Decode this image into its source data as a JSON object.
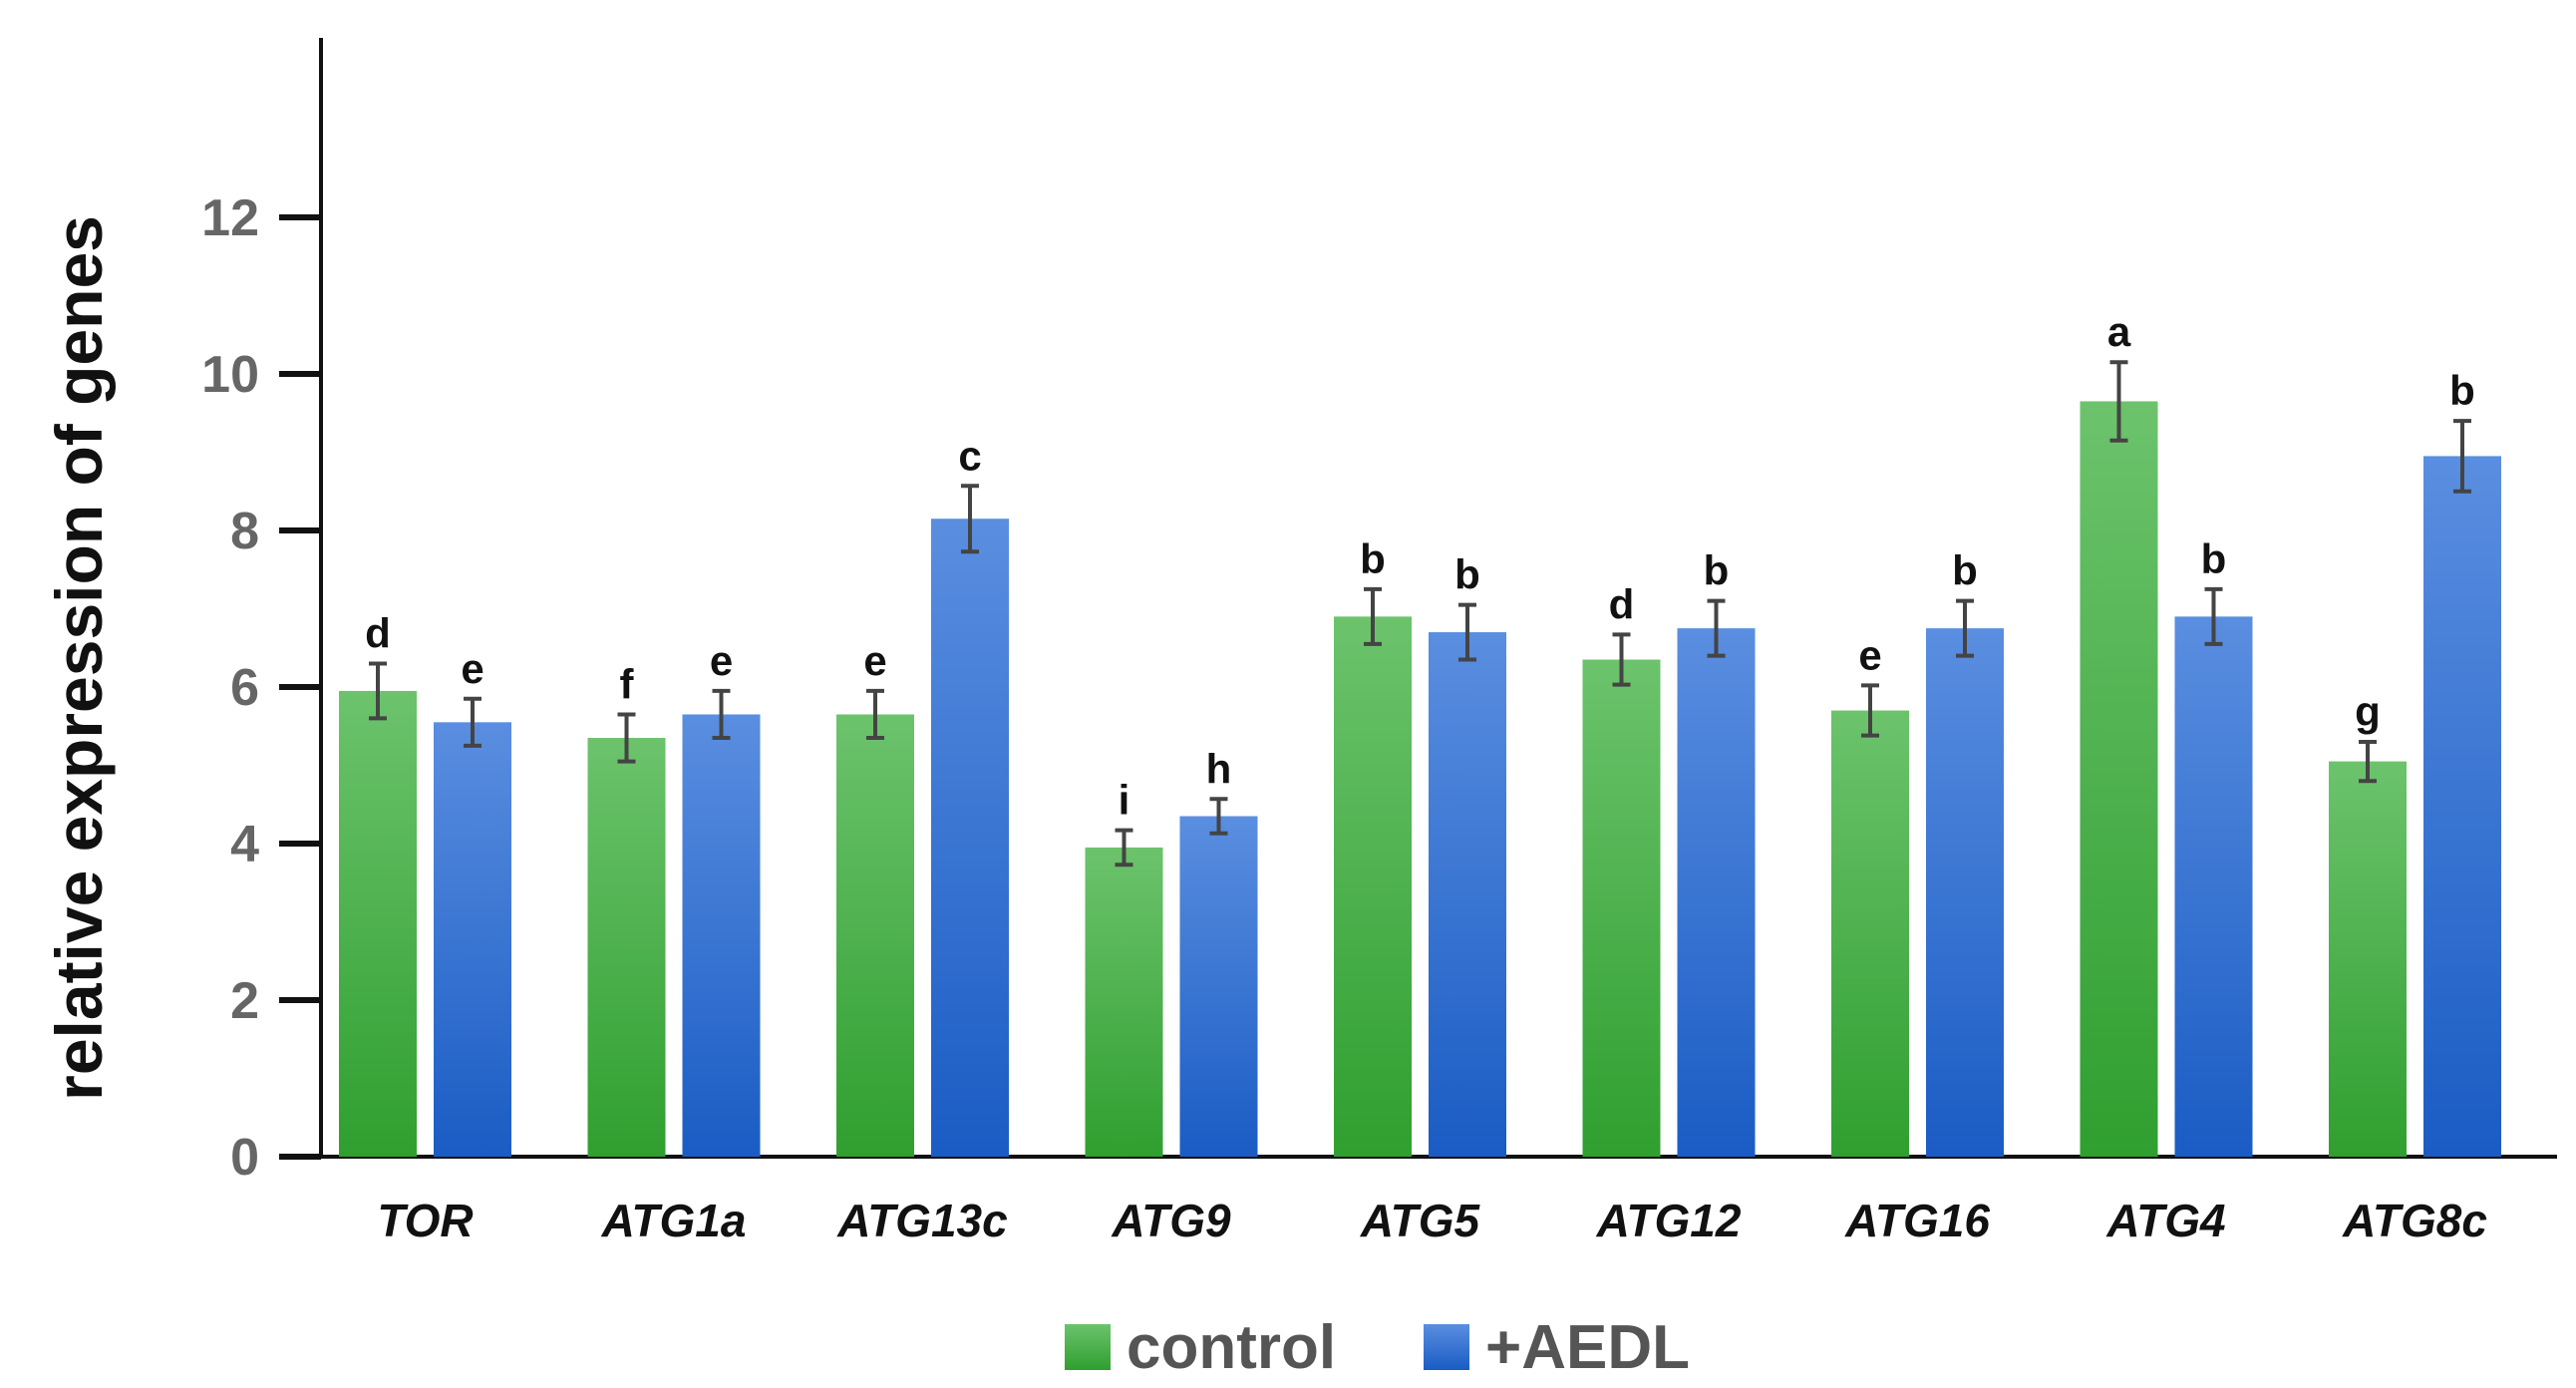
{
  "chart_data": {
    "type": "bar",
    "title": "",
    "xlabel": "",
    "ylabel": "relative expression of genes",
    "ylim": [
      0,
      14
    ],
    "yticks": [
      0,
      2,
      4,
      6,
      8,
      10,
      12
    ],
    "grid": false,
    "legend_position": "bottom-center",
    "categories": [
      "TOR",
      "ATG1a",
      "ATG13c",
      "ATG9",
      "ATG5",
      "ATG12",
      "ATG16",
      "ATG4",
      "ATG8c"
    ],
    "series": [
      {
        "name": "control",
        "color": "#3daa3d",
        "values": [
          5.95,
          5.35,
          5.65,
          3.95,
          6.9,
          6.35,
          5.7,
          9.65,
          5.05
        ],
        "errors": [
          0.35,
          0.3,
          0.3,
          0.22,
          0.35,
          0.32,
          0.32,
          0.5,
          0.25
        ],
        "letters": [
          "d",
          "f",
          "e",
          "i",
          "b",
          "d",
          "e",
          "a",
          "g"
        ]
      },
      {
        "name": "+AEDL",
        "color": "#2f6fd0",
        "values": [
          5.55,
          5.65,
          8.15,
          4.35,
          6.7,
          6.75,
          6.75,
          6.9,
          8.95
        ],
        "errors": [
          0.3,
          0.3,
          0.42,
          0.22,
          0.35,
          0.35,
          0.35,
          0.35,
          0.45
        ],
        "letters": [
          "e",
          "e",
          "c",
          "h",
          "b",
          "b",
          "b",
          "b",
          "b"
        ]
      }
    ]
  }
}
